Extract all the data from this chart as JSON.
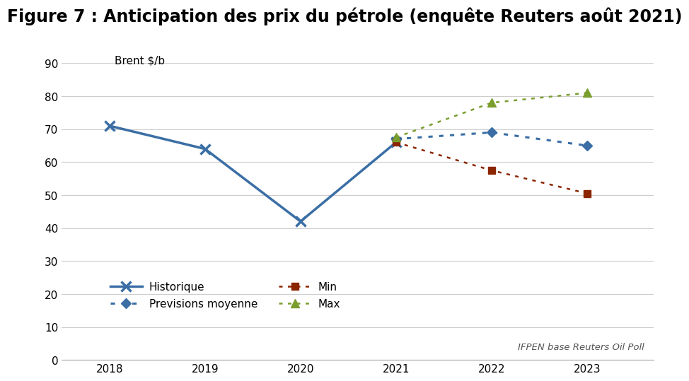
{
  "title": "Figure 7 : Anticipation des prix du pétrole (enquête Reuters août 2021)",
  "ylabel": "Brent $/b",
  "source_text": "IFPEN base Reuters Oil Poll",
  "xlim": [
    2017.5,
    2023.7
  ],
  "ylim": [
    0,
    95
  ],
  "yticks": [
    0,
    10,
    20,
    30,
    40,
    50,
    60,
    70,
    80,
    90
  ],
  "xticks": [
    2018,
    2019,
    2020,
    2021,
    2022,
    2023
  ],
  "historique": {
    "x": [
      2018,
      2019,
      2020,
      2021
    ],
    "y": [
      71,
      64,
      42,
      66
    ],
    "color": "#3a6ea5",
    "marker": "x",
    "label": "Historique",
    "linestyle": "-",
    "linewidth": 2.5
  },
  "previsions": {
    "x": [
      2021,
      2022,
      2023
    ],
    "y": [
      67,
      69,
      65
    ],
    "color": "#3a6ea5",
    "marker": "D",
    "label": "Previsions moyenne",
    "linestyle": ":",
    "linewidth": 2.2
  },
  "min": {
    "x": [
      2021,
      2022,
      2023
    ],
    "y": [
      66,
      57.5,
      50.5
    ],
    "color": "#8b2500",
    "marker": "s",
    "label": "Min",
    "linestyle": ":",
    "linewidth": 1.8
  },
  "max": {
    "x": [
      2021,
      2022,
      2023
    ],
    "y": [
      67.5,
      78,
      81
    ],
    "color": "#7a9e2e",
    "marker": "^",
    "label": "Max",
    "linestyle": ":",
    "linewidth": 1.8
  },
  "title_fontsize": 17,
  "axis_label_fontsize": 11,
  "tick_fontsize": 11,
  "legend_fontsize": 11,
  "background_color": "#ffffff"
}
